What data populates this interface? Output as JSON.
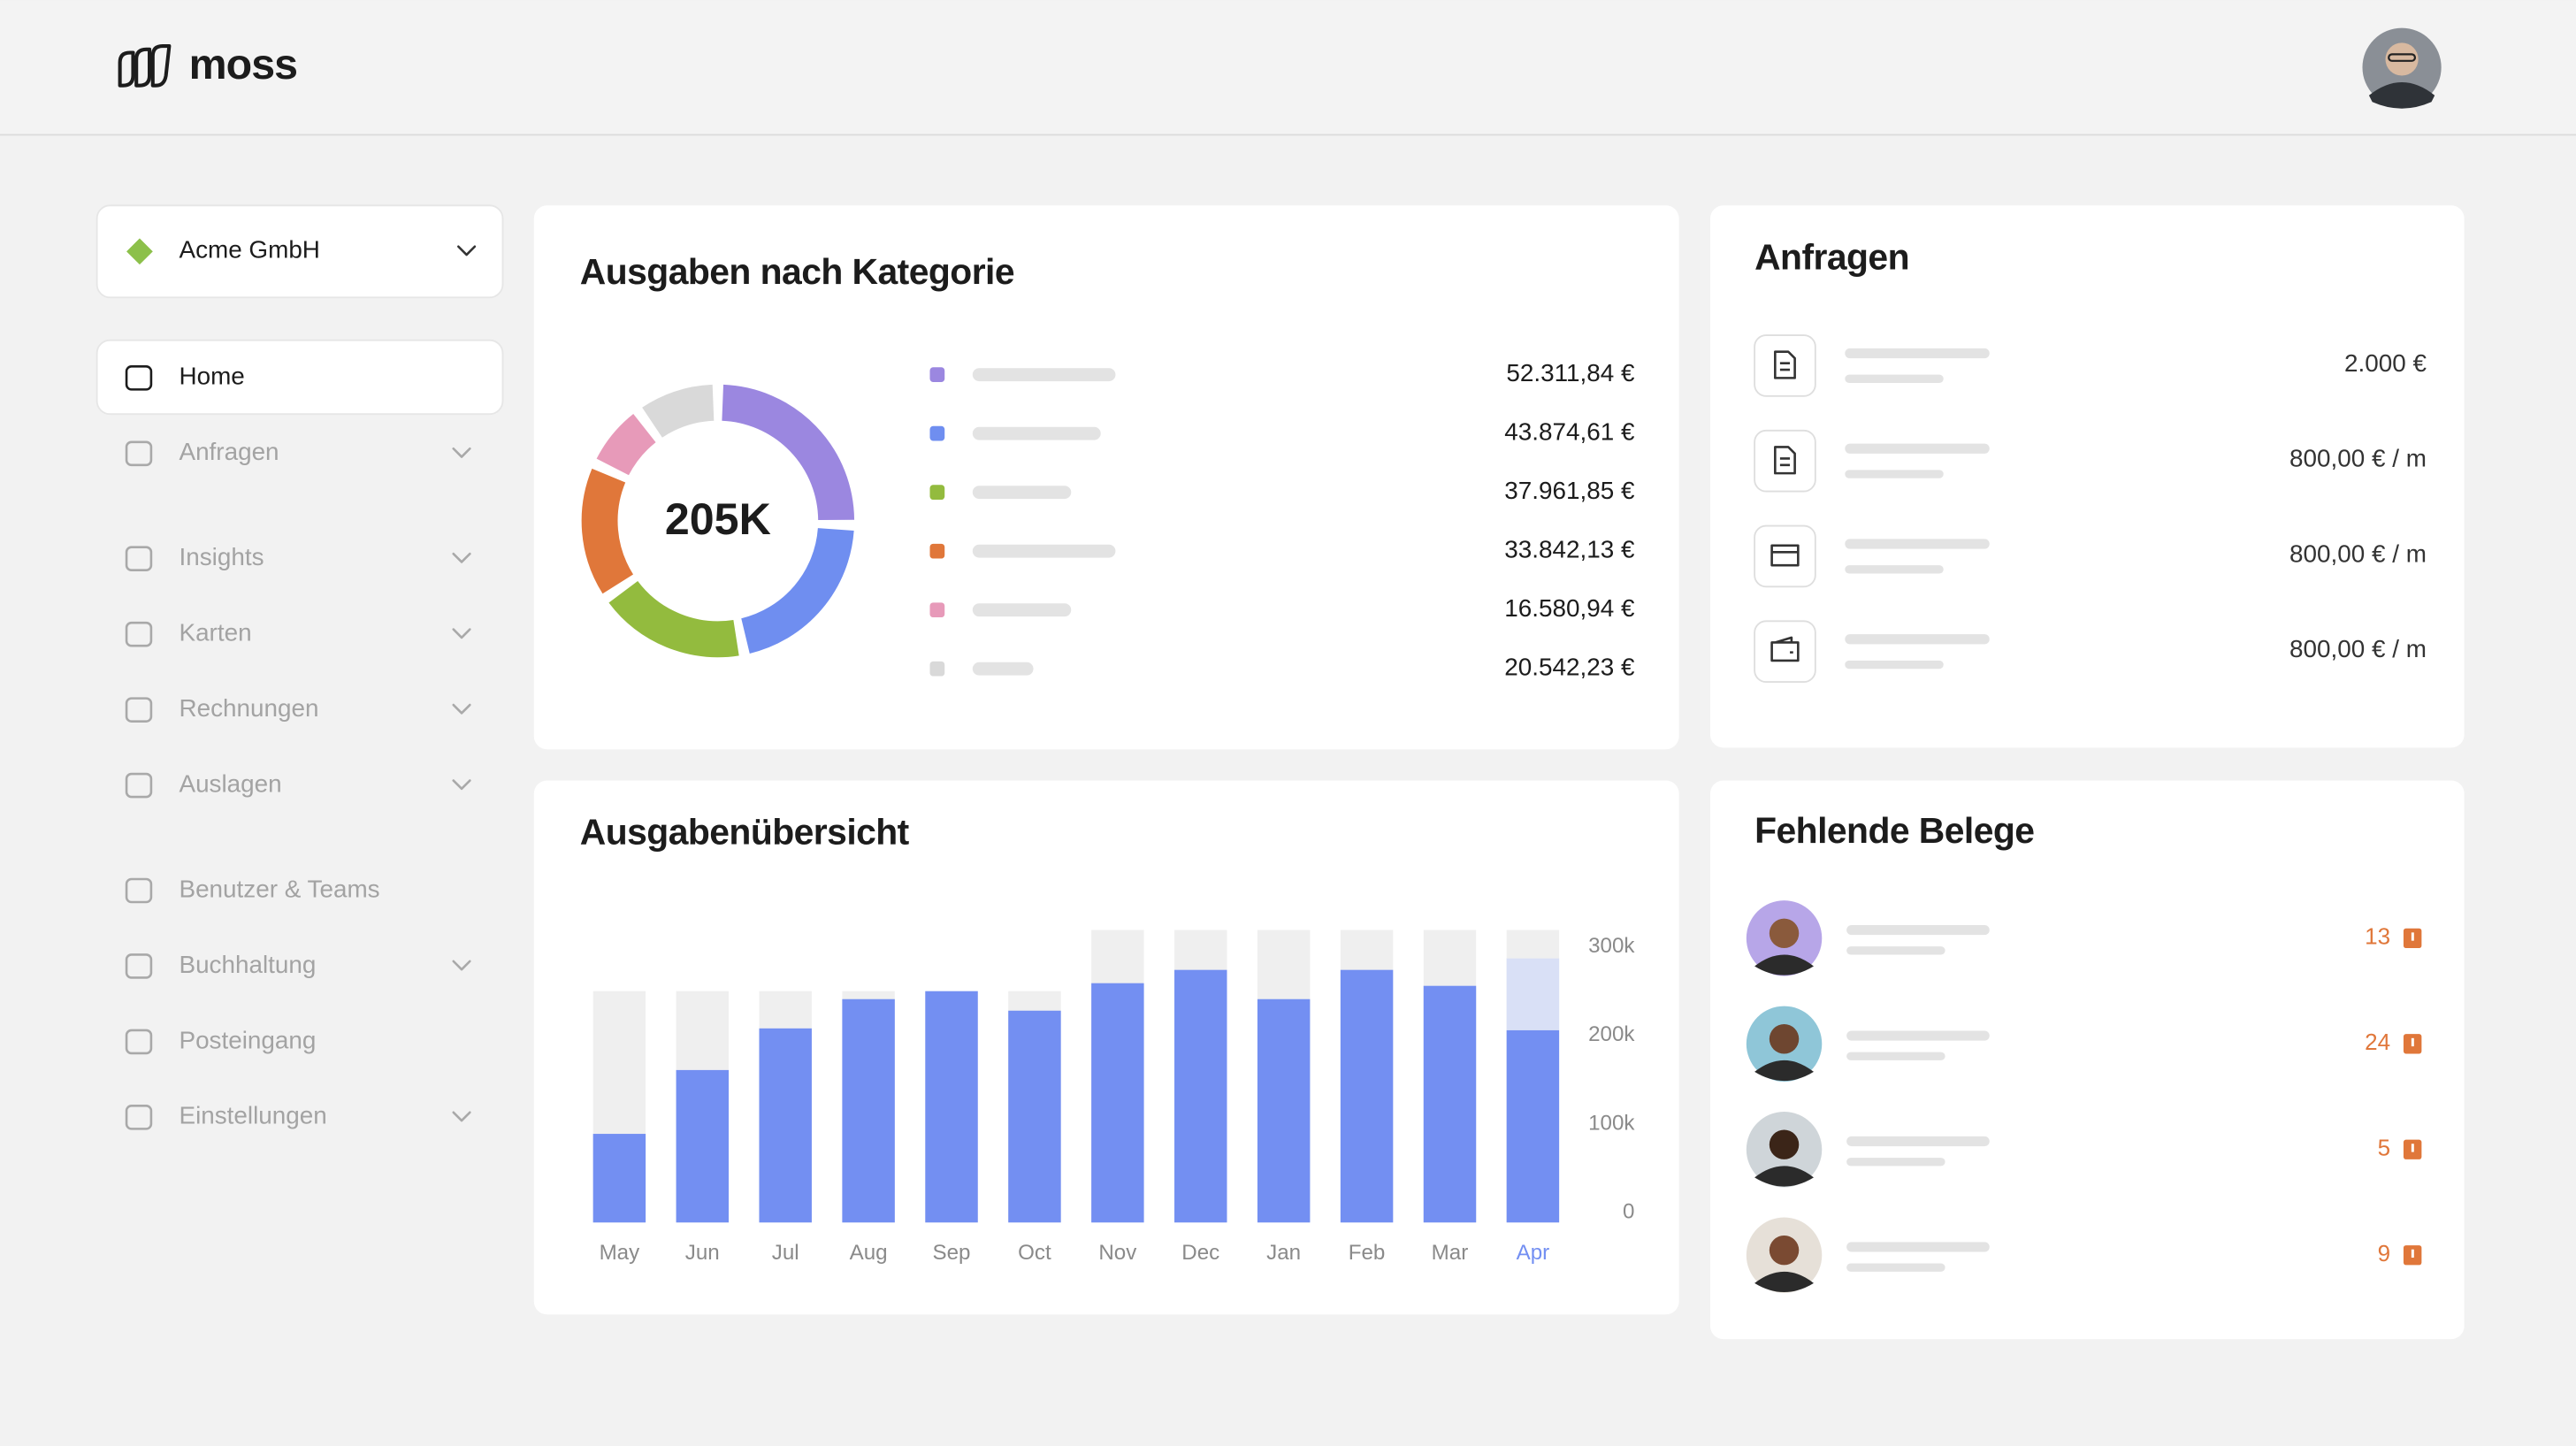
{
  "header": {
    "logo": "moss"
  },
  "sidebar": {
    "org": "Acme GmbH",
    "nav": [
      "Home",
      "Anfragen",
      "Insights",
      "Karten",
      "Rechnungen",
      "Auslagen",
      "Benutzer & Teams",
      "Buchhaltung",
      "Posteingang",
      "Einstellungen"
    ]
  },
  "chart_data": [
    {
      "type": "donut",
      "title": "Ausgaben nach Kategorie",
      "center_label": "205K",
      "values": [
        52311.84,
        43874.61,
        37961.85,
        33842.13,
        16580.94,
        20542.23
      ],
      "value_labels": [
        "52.311,84 €",
        "43.874,61 €",
        "37.961,85 €",
        "33.842,13 €",
        "16.580,94 €",
        "20.542,23 €"
      ],
      "colors": [
        "#9b87e0",
        "#6f8ef0",
        "#93bb3e",
        "#e0773a",
        "#e79ab9",
        "#d9d9d9"
      ]
    },
    {
      "type": "bar",
      "title": "Ausgabenübersicht",
      "categories": [
        "May",
        "Jun",
        "Jul",
        "Aug",
        "Sep",
        "Oct",
        "Nov",
        "Dec",
        "Jan",
        "Feb",
        "Mar",
        "Apr"
      ],
      "series": [
        {
          "color": "#efefef",
          "values": [
            261000,
            261000,
            261000,
            261000,
            261000,
            261000,
            330000,
            330000,
            330000,
            330000,
            330000,
            330000
          ]
        },
        {
          "color": "#738ff2",
          "values": [
            100000,
            172000,
            219000,
            252000,
            261000,
            239000,
            270000,
            285000,
            252000,
            285000,
            267000,
            217000
          ]
        },
        {
          "color": "#d9e0f6",
          "values": [
            null,
            null,
            null,
            null,
            null,
            null,
            null,
            null,
            null,
            null,
            null,
            81000
          ]
        }
      ],
      "ylim": [
        0,
        330000
      ],
      "yticks": [
        0,
        {
          "value": 100000,
          "label": "100k"
        },
        {
          "value": 200000,
          "label": "200k"
        },
        {
          "value": 300000,
          "label": "300k"
        }
      ]
    }
  ],
  "requests": {
    "title": "Anfragen",
    "amounts": [
      "2.000 €",
      "800,00 € / m",
      "800,00 € / m",
      "800,00 € / m"
    ]
  },
  "missing_receipts": {
    "title": "Fehlende Belege",
    "counts": [
      13,
      24,
      5,
      9
    ]
  }
}
